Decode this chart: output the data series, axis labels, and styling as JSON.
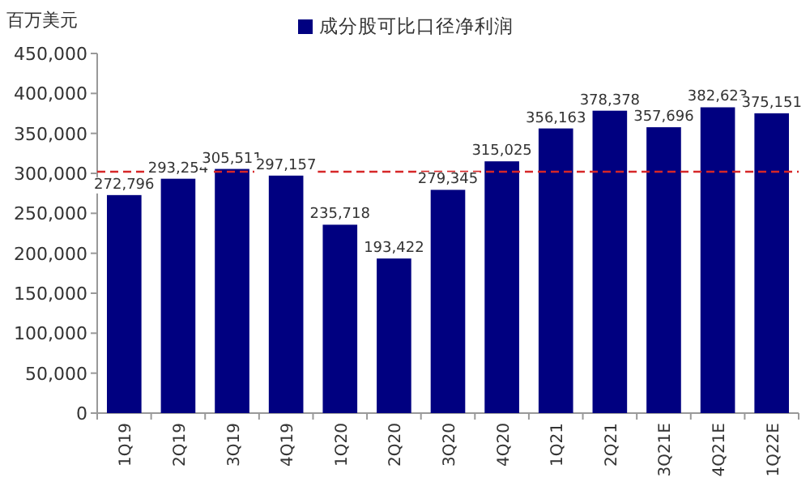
{
  "chart_data": {
    "type": "bar",
    "ylabel": "百万美元",
    "categories": [
      "1Q19",
      "2Q19",
      "3Q19",
      "4Q19",
      "1Q20",
      "2Q20",
      "3Q20",
      "4Q20",
      "1Q21",
      "2Q21",
      "3Q21E",
      "4Q21E",
      "1Q22E"
    ],
    "series": [
      {
        "name": "成分股可比口径净利润",
        "color": "#000080",
        "values": [
          272796,
          293254,
          305511,
          297157,
          235718,
          193422,
          279345,
          315025,
          356163,
          378378,
          357696,
          382623,
          375151
        ],
        "value_labels": [
          "272,796",
          "293,254",
          "305,511",
          "297,157",
          "235,718",
          "193,422",
          "279,345",
          "315,025",
          "356,163",
          "378,378",
          "357,696",
          "382,623",
          "375,151"
        ]
      }
    ],
    "ylim": [
      0,
      450000
    ],
    "yticks": [
      {
        "value": 0,
        "label": "0"
      },
      {
        "value": 50000,
        "label": "50,000"
      },
      {
        "value": 100000,
        "label": "100,000"
      },
      {
        "value": 150000,
        "label": "150,000"
      },
      {
        "value": 200000,
        "label": "200,000"
      },
      {
        "value": 250000,
        "label": "250,000"
      },
      {
        "value": 300000,
        "label": "300,000"
      },
      {
        "value": 350000,
        "label": "350,000"
      },
      {
        "value": 400000,
        "label": "400,000"
      },
      {
        "value": 450000,
        "label": "450,000"
      }
    ],
    "legend": "top",
    "grid": false,
    "ref_lines": [
      {
        "axis": "y",
        "value": 302000,
        "color": "#d62728",
        "line_style": "dashed"
      }
    ]
  }
}
